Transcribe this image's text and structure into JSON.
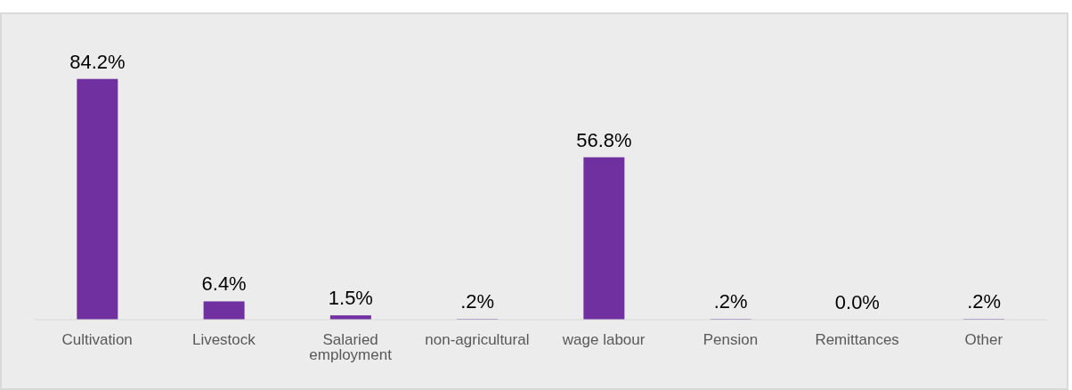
{
  "chart_data": {
    "type": "bar",
    "categories": [
      "Cultivation",
      "Livestock",
      "Salaried employment",
      "non-agricultural",
      "wage labour",
      "Pension",
      "Remittances",
      "Other"
    ],
    "values": [
      84.2,
      6.4,
      1.5,
      0.2,
      56.8,
      0.2,
      0.0,
      0.2
    ],
    "value_labels": [
      "84.2%",
      "6.4%",
      "1.5%",
      ".2%",
      "56.8%",
      ".2%",
      "0.0%",
      ".2%"
    ],
    "color": "#7030a0",
    "relative": false,
    "grid": false,
    "legend": false
  }
}
